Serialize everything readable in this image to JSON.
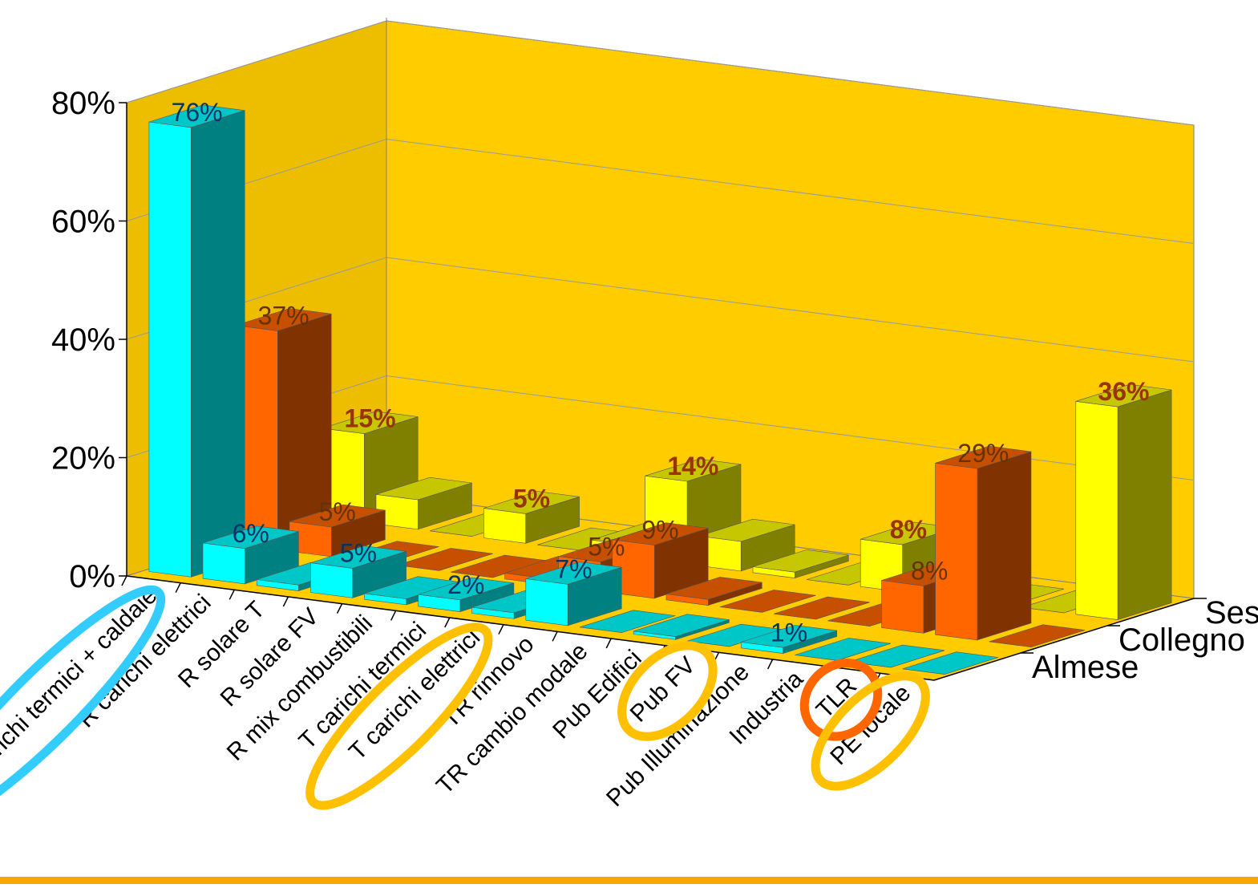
{
  "chart_data": {
    "type": "bar",
    "subtype": "3d-clustered-columns",
    "ylim": [
      0,
      80
    ],
    "yticks": [
      "0%",
      "20%",
      "40%",
      "60%",
      "80%"
    ],
    "grid": true,
    "categories": [
      "R carichi termici + caldaie",
      "R carichi elettrici",
      "R solare T",
      "R solare FV",
      "R mix combustibili",
      "T carichi termici",
      "T carichi elettrici",
      "TR rinnovo",
      "TR cambio modale",
      "Pub Edifici",
      "Pub FV",
      "Pub Illuminazione",
      "Industria",
      "TLR",
      "PE locale"
    ],
    "series": [
      {
        "name": "Almese",
        "values": [
          76,
          6,
          1,
          5,
          1,
          2,
          1,
          7,
          0,
          0.5,
          0,
          1,
          0,
          0,
          0
        ],
        "labels": [
          "76%",
          "6%",
          "",
          "5%",
          "",
          "2%",
          "",
          "7%",
          "",
          "",
          "",
          "1%",
          "",
          "",
          ""
        ],
        "color": "#00ffff"
      },
      {
        "name": "Collegno",
        "values": [
          37,
          5,
          0,
          0,
          0,
          1,
          5,
          9,
          1,
          0,
          0,
          0,
          8,
          29,
          0
        ],
        "labels": [
          "37%",
          "5%",
          "",
          "",
          "",
          "",
          "5%",
          "9%",
          "",
          "",
          "",
          "",
          "8%",
          "29%",
          ""
        ],
        "color": "#ff6600"
      },
      {
        "name": "Sestriere",
        "values": [
          15,
          5,
          0,
          5,
          0,
          2,
          14,
          5,
          1,
          0,
          8,
          2,
          0,
          0,
          36
        ],
        "labels": [
          "15%",
          "",
          "",
          "5%",
          "",
          "",
          "14%",
          "",
          "",
          "",
          "8%",
          "",
          "",
          "",
          "36%"
        ],
        "color": "#ffff00"
      }
    ],
    "highlights": [
      {
        "category": "R carichi termici + caldaie",
        "color": "#33ccff"
      },
      {
        "category": "T carichi elettrici",
        "color": "#ffc000"
      },
      {
        "category": "Pub FV",
        "color": "#ffc000"
      },
      {
        "category": "TLR",
        "color": "#ff6600"
      },
      {
        "category": "PE locale",
        "color": "#ffc000"
      }
    ],
    "colors": {
      "wall": "#ffcc00",
      "floor": "#ffcc00",
      "gridline": "#999999",
      "label_dark": "#003366",
      "label_red": "#993300",
      "label_brown": "#663300",
      "rule": "#ffa500"
    }
  }
}
